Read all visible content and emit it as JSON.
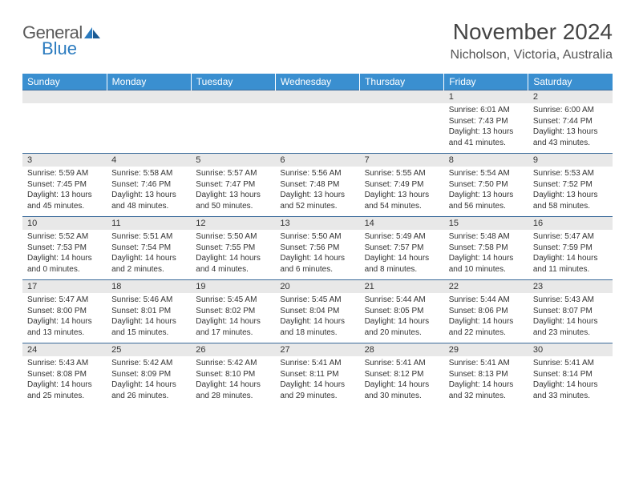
{
  "logo": {
    "word1": "General",
    "word2": "Blue"
  },
  "header": {
    "title": "November 2024",
    "location": "Nicholson, Victoria, Australia"
  },
  "colors": {
    "header_bg": "#3a8fd0",
    "header_text": "#ffffff",
    "daynum_bg": "#e8e8e8",
    "row_border": "#3a6a9a",
    "body_text": "#333333",
    "title_text": "#444444",
    "logo_gray": "#5a5a5a",
    "logo_blue": "#2b7bbf",
    "page_bg": "#ffffff"
  },
  "day_names": [
    "Sunday",
    "Monday",
    "Tuesday",
    "Wednesday",
    "Thursday",
    "Friday",
    "Saturday"
  ],
  "days": {
    "1": {
      "sunrise": "6:01 AM",
      "sunset": "7:43 PM",
      "daylight": "13 hours and 41 minutes."
    },
    "2": {
      "sunrise": "6:00 AM",
      "sunset": "7:44 PM",
      "daylight": "13 hours and 43 minutes."
    },
    "3": {
      "sunrise": "5:59 AM",
      "sunset": "7:45 PM",
      "daylight": "13 hours and 45 minutes."
    },
    "4": {
      "sunrise": "5:58 AM",
      "sunset": "7:46 PM",
      "daylight": "13 hours and 48 minutes."
    },
    "5": {
      "sunrise": "5:57 AM",
      "sunset": "7:47 PM",
      "daylight": "13 hours and 50 minutes."
    },
    "6": {
      "sunrise": "5:56 AM",
      "sunset": "7:48 PM",
      "daylight": "13 hours and 52 minutes."
    },
    "7": {
      "sunrise": "5:55 AM",
      "sunset": "7:49 PM",
      "daylight": "13 hours and 54 minutes."
    },
    "8": {
      "sunrise": "5:54 AM",
      "sunset": "7:50 PM",
      "daylight": "13 hours and 56 minutes."
    },
    "9": {
      "sunrise": "5:53 AM",
      "sunset": "7:52 PM",
      "daylight": "13 hours and 58 minutes."
    },
    "10": {
      "sunrise": "5:52 AM",
      "sunset": "7:53 PM",
      "daylight": "14 hours and 0 minutes."
    },
    "11": {
      "sunrise": "5:51 AM",
      "sunset": "7:54 PM",
      "daylight": "14 hours and 2 minutes."
    },
    "12": {
      "sunrise": "5:50 AM",
      "sunset": "7:55 PM",
      "daylight": "14 hours and 4 minutes."
    },
    "13": {
      "sunrise": "5:50 AM",
      "sunset": "7:56 PM",
      "daylight": "14 hours and 6 minutes."
    },
    "14": {
      "sunrise": "5:49 AM",
      "sunset": "7:57 PM",
      "daylight": "14 hours and 8 minutes."
    },
    "15": {
      "sunrise": "5:48 AM",
      "sunset": "7:58 PM",
      "daylight": "14 hours and 10 minutes."
    },
    "16": {
      "sunrise": "5:47 AM",
      "sunset": "7:59 PM",
      "daylight": "14 hours and 11 minutes."
    },
    "17": {
      "sunrise": "5:47 AM",
      "sunset": "8:00 PM",
      "daylight": "14 hours and 13 minutes."
    },
    "18": {
      "sunrise": "5:46 AM",
      "sunset": "8:01 PM",
      "daylight": "14 hours and 15 minutes."
    },
    "19": {
      "sunrise": "5:45 AM",
      "sunset": "8:02 PM",
      "daylight": "14 hours and 17 minutes."
    },
    "20": {
      "sunrise": "5:45 AM",
      "sunset": "8:04 PM",
      "daylight": "14 hours and 18 minutes."
    },
    "21": {
      "sunrise": "5:44 AM",
      "sunset": "8:05 PM",
      "daylight": "14 hours and 20 minutes."
    },
    "22": {
      "sunrise": "5:44 AM",
      "sunset": "8:06 PM",
      "daylight": "14 hours and 22 minutes."
    },
    "23": {
      "sunrise": "5:43 AM",
      "sunset": "8:07 PM",
      "daylight": "14 hours and 23 minutes."
    },
    "24": {
      "sunrise": "5:43 AM",
      "sunset": "8:08 PM",
      "daylight": "14 hours and 25 minutes."
    },
    "25": {
      "sunrise": "5:42 AM",
      "sunset": "8:09 PM",
      "daylight": "14 hours and 26 minutes."
    },
    "26": {
      "sunrise": "5:42 AM",
      "sunset": "8:10 PM",
      "daylight": "14 hours and 28 minutes."
    },
    "27": {
      "sunrise": "5:41 AM",
      "sunset": "8:11 PM",
      "daylight": "14 hours and 29 minutes."
    },
    "28": {
      "sunrise": "5:41 AM",
      "sunset": "8:12 PM",
      "daylight": "14 hours and 30 minutes."
    },
    "29": {
      "sunrise": "5:41 AM",
      "sunset": "8:13 PM",
      "daylight": "14 hours and 32 minutes."
    },
    "30": {
      "sunrise": "5:41 AM",
      "sunset": "8:14 PM",
      "daylight": "14 hours and 33 minutes."
    }
  },
  "labels": {
    "sunrise": "Sunrise: ",
    "sunset": "Sunset: ",
    "daylight": "Daylight: "
  },
  "weeks": [
    [
      null,
      null,
      null,
      null,
      null,
      "1",
      "2"
    ],
    [
      "3",
      "4",
      "5",
      "6",
      "7",
      "8",
      "9"
    ],
    [
      "10",
      "11",
      "12",
      "13",
      "14",
      "15",
      "16"
    ],
    [
      "17",
      "18",
      "19",
      "20",
      "21",
      "22",
      "23"
    ],
    [
      "24",
      "25",
      "26",
      "27",
      "28",
      "29",
      "30"
    ]
  ]
}
